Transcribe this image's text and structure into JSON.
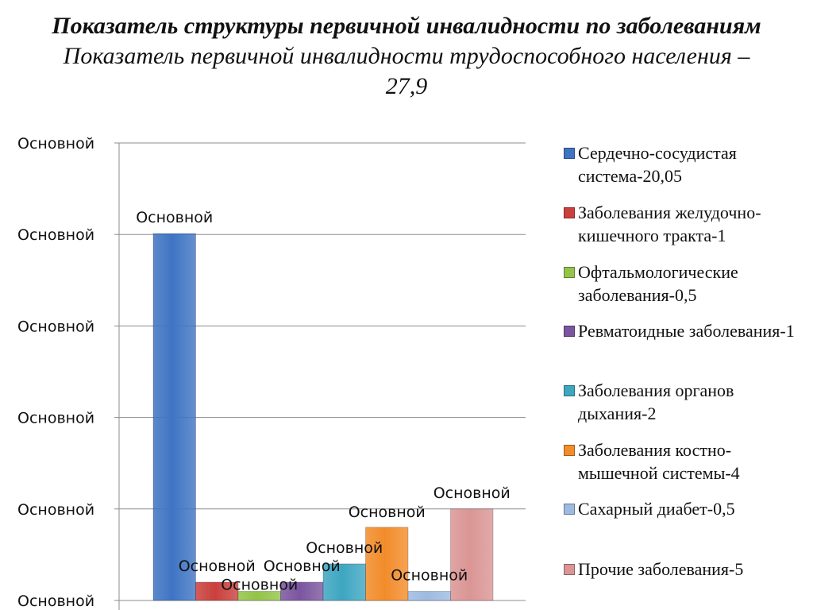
{
  "title": {
    "line1": "Показатель структуры первичной инвалидности по заболеваниям",
    "line2": "Показатель первичной инвалидности трудоспособного населения – 27,9"
  },
  "chart_data": {
    "type": "bar",
    "ylim": [
      0,
      25
    ],
    "yticks": [
      0,
      5,
      10,
      15,
      20,
      25
    ],
    "ytick_labels": [
      "Основной",
      "Основной",
      "Основной",
      "Основной",
      "Основной",
      "Основной"
    ],
    "grid": true,
    "legend_position": "right",
    "series": [
      {
        "name": "Сердечно-сосудистая система-20,05",
        "value": 20.05,
        "color": "#3f74c3",
        "data_label": "Основной"
      },
      {
        "name": "Заболевания желудочно-кишечного тракта-1",
        "value": 1,
        "color": "#c9403d",
        "data_label": "Основной"
      },
      {
        "name": "Офтальмологические заболевания-0,5",
        "value": 0.5,
        "color": "#93c347",
        "data_label": "Основной"
      },
      {
        "name": "Ревматоидные заболевания-1",
        "value": 1,
        "color": "#7b559f",
        "data_label": "Основной"
      },
      {
        "name": "Заболевания органов дыхания-2",
        "value": 2,
        "color": "#3ea6c1",
        "data_label": "Основной"
      },
      {
        "name": "Заболевания костно-мышечной системы-4",
        "value": 4,
        "color": "#f28c2a",
        "data_label": "Основной"
      },
      {
        "name": "Сахарный диабет-0,5",
        "value": 0.5,
        "color": "#9dbbe0",
        "data_label": "Основной"
      },
      {
        "name": "Прочие заболевания-5",
        "value": 5,
        "color": "#da9594",
        "data_label": "Основной"
      }
    ]
  }
}
